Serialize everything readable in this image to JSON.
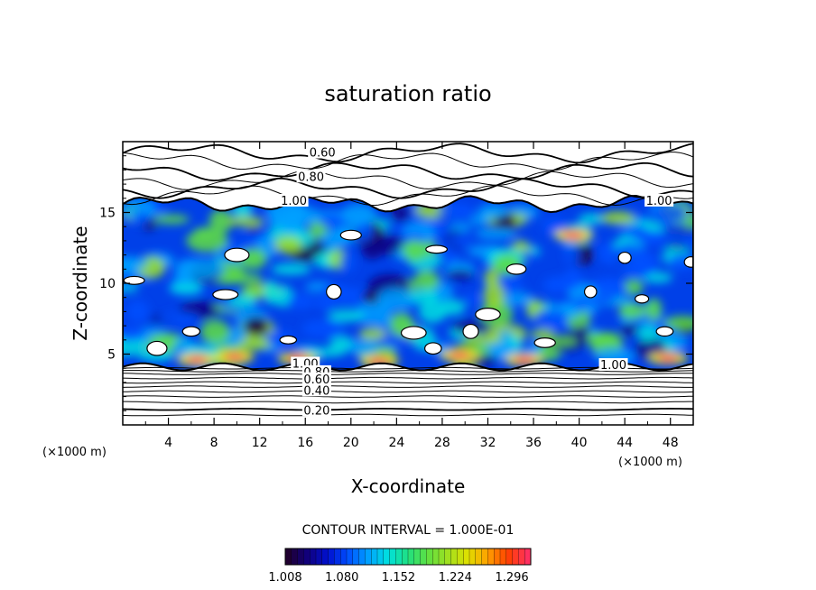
{
  "chart_data": {
    "type": "heatmap",
    "title": "saturation ratio",
    "xlabel": "X-coordinate",
    "ylabel": "Z-coordinate",
    "x_unit": "(×1000 m)",
    "y_unit": "(×1000 m)",
    "xlim": [
      0,
      50
    ],
    "ylim": [
      0,
      20
    ],
    "x_ticks": [
      4,
      8,
      12,
      16,
      20,
      24,
      28,
      32,
      36,
      40,
      44,
      48
    ],
    "y_ticks": [
      5,
      10,
      15
    ],
    "contour_interval_label": "CONTOUR INTERVAL = 1.000E-01",
    "contour_labels": [
      {
        "text": "0.60",
        "x": 17.5,
        "z": 19.2
      },
      {
        "text": "0.80",
        "x": 16.5,
        "z": 17.5
      },
      {
        "text": "1.00",
        "x": 15.0,
        "z": 15.8
      },
      {
        "text": "1.00",
        "x": 47.0,
        "z": 15.8
      },
      {
        "text": "1.00",
        "x": 16.0,
        "z": 4.3
      },
      {
        "text": "0.80",
        "x": 17.0,
        "z": 3.7
      },
      {
        "text": "0.60",
        "x": 17.0,
        "z": 3.2
      },
      {
        "text": "0.40",
        "x": 17.0,
        "z": 2.4
      },
      {
        "text": "0.20",
        "x": 17.0,
        "z": 1.0
      },
      {
        "text": "1.00",
        "x": 43.0,
        "z": 4.2
      }
    ],
    "colorbar": {
      "ticks": [
        "1.008",
        "1.080",
        "1.152",
        "1.224",
        "1.296"
      ],
      "range": [
        1.008,
        1.32
      ]
    },
    "colormap": [
      "#200030",
      "#100080",
      "#0010d0",
      "#0050ff",
      "#00a0ff",
      "#00e0e0",
      "#20e080",
      "#60e040",
      "#a0e020",
      "#e0e000",
      "#ffa000",
      "#ff4000",
      "#ff3060"
    ]
  }
}
